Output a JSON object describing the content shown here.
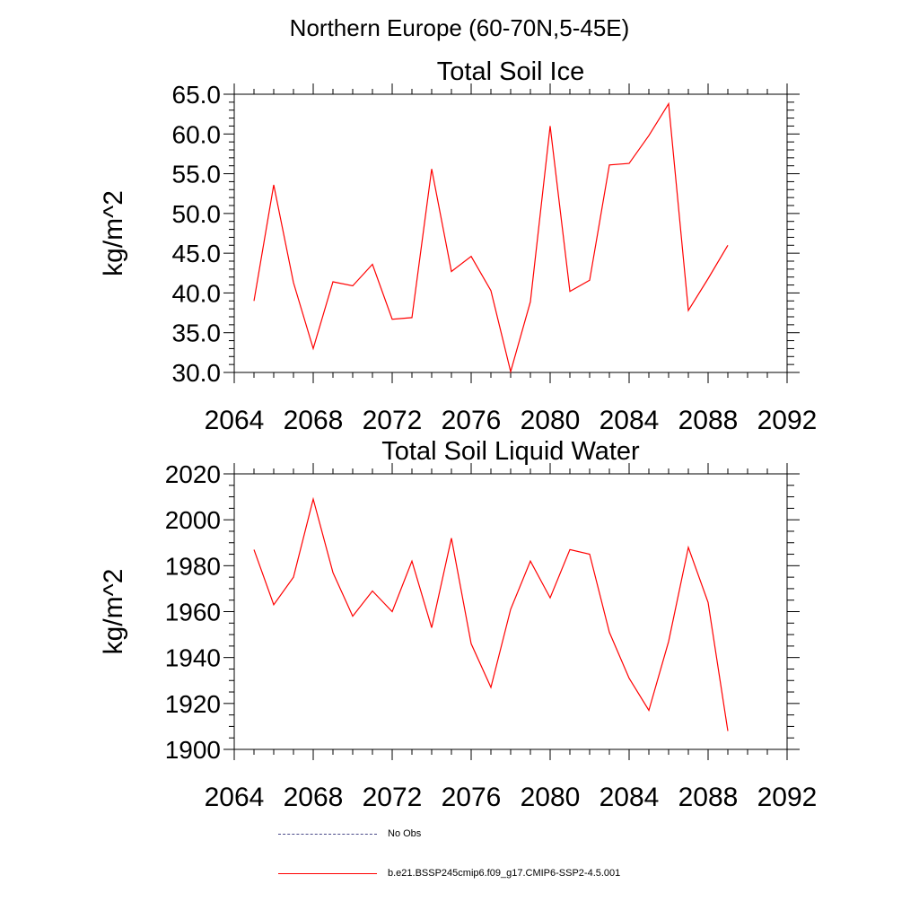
{
  "figure": {
    "supertitle": "Northern Europe (60-70N,5-45E)"
  },
  "chart_data": [
    {
      "type": "line",
      "title": "Total Soil Ice",
      "xlabel": "",
      "ylabel": "kg/m^2",
      "xlim": [
        2064,
        2092
      ],
      "ylim": [
        30,
        65
      ],
      "xticks": [
        2064,
        2068,
        2072,
        2076,
        2080,
        2084,
        2088,
        2092
      ],
      "xtick_labels": [
        "2064",
        "2068",
        "2072",
        "2076",
        "2080",
        "2084",
        "2088",
        "2092"
      ],
      "yticks": [
        30,
        35,
        40,
        45,
        50,
        55,
        60,
        65
      ],
      "ytick_labels": [
        "30.0",
        "35.0",
        "40.0",
        "45.0",
        "50.0",
        "55.0",
        "60.0",
        "65.0"
      ],
      "grid": false,
      "series": [
        {
          "name": "b.e21.BSSP245cmip6.f09_g17.CMIP6-SSP2-4.5.001",
          "color": "#ff0000",
          "x": [
            2065,
            2066,
            2067,
            2068,
            2069,
            2070,
            2071,
            2072,
            2073,
            2074,
            2075,
            2076,
            2077,
            2078,
            2079,
            2080,
            2081,
            2082,
            2083,
            2084,
            2085,
            2086,
            2087,
            2088,
            2089
          ],
          "y": [
            39.0,
            53.6,
            41.3,
            33.0,
            41.4,
            40.9,
            43.6,
            36.7,
            36.9,
            55.6,
            42.7,
            44.6,
            40.3,
            30.1,
            38.9,
            61.0,
            40.2,
            41.6,
            56.1,
            56.3,
            59.8,
            63.8,
            37.8,
            41.8,
            46.0
          ]
        }
      ]
    },
    {
      "type": "line",
      "title": "Total Soil Liquid Water",
      "xlabel": "",
      "ylabel": "kg/m^2",
      "xlim": [
        2064,
        2092
      ],
      "ylim": [
        1900,
        2020
      ],
      "xticks": [
        2064,
        2068,
        2072,
        2076,
        2080,
        2084,
        2088,
        2092
      ],
      "xtick_labels": [
        "2064",
        "2068",
        "2072",
        "2076",
        "2080",
        "2084",
        "2088",
        "2092"
      ],
      "yticks": [
        1900,
        1920,
        1940,
        1960,
        1980,
        2000,
        2020
      ],
      "ytick_labels": [
        "1900",
        "1920",
        "1940",
        "1960",
        "1980",
        "2000",
        "2020"
      ],
      "grid": false,
      "series": [
        {
          "name": "b.e21.BSSP245cmip6.f09_g17.CMIP6-SSP2-4.5.001",
          "color": "#ff0000",
          "x": [
            2065,
            2066,
            2067,
            2068,
            2069,
            2070,
            2071,
            2072,
            2073,
            2074,
            2075,
            2076,
            2077,
            2078,
            2079,
            2080,
            2081,
            2082,
            2083,
            2084,
            2085,
            2086,
            2087,
            2088,
            2089
          ],
          "y": [
            1987,
            1963,
            1975,
            2009,
            1977,
            1958,
            1969,
            1960,
            1982,
            1953,
            1992,
            1946,
            1927,
            1961,
            1982,
            1966,
            1987,
            1985,
            1951,
            1931,
            1917,
            1947,
            1988,
            1964,
            1908
          ]
        }
      ]
    }
  ],
  "legend": {
    "entries": [
      {
        "label": "No Obs",
        "color": "#4a4a8a",
        "style": "dashed"
      },
      {
        "label": "b.e21.BSSP245cmip6.f09_g17.CMIP6-SSP2-4.5.001",
        "color": "#ff0000",
        "style": "solid"
      }
    ]
  }
}
